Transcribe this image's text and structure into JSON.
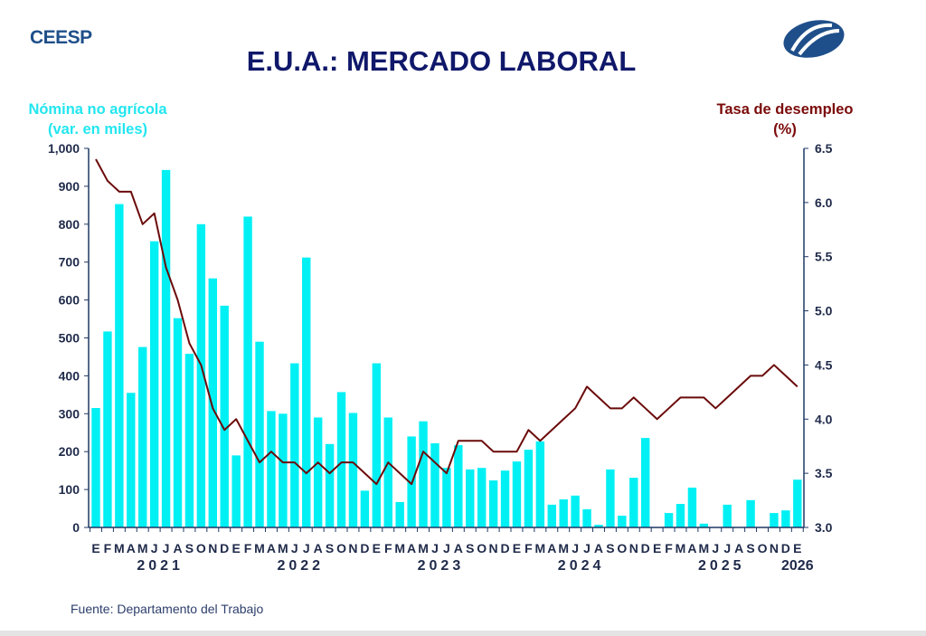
{
  "header": {
    "brand": "CEESP",
    "title": "E.U.A.: MERCADO LABORAL",
    "left_axis_title": [
      "Nómina no agrícola",
      "(var. en miles)"
    ],
    "right_axis_title": [
      "Tasa de desempleo",
      "(%)"
    ]
  },
  "footer": {
    "source": "Fuente: Departamento del Trabajo"
  },
  "colors": {
    "bars": "#00f0f4",
    "line": "#6b0a0a",
    "axis": "#1f3864",
    "title": "#10186a"
  },
  "chart_data": {
    "type": "bar+line",
    "title": "E.U.A.: MERCADO LABORAL",
    "month_labels": [
      "E",
      "F",
      "M",
      "A",
      "M",
      "J",
      "J",
      "A",
      "S",
      "O",
      "N",
      "D",
      "E",
      "F",
      "M",
      "A",
      "M",
      "J",
      "J",
      "A",
      "S",
      "O",
      "N",
      "D",
      "E",
      "F",
      "M",
      "A",
      "M",
      "J",
      "J",
      "A",
      "S",
      "O",
      "N",
      "D",
      "E",
      "F",
      "M",
      "A",
      "M",
      "J",
      "J",
      "A",
      "S",
      "O",
      "N",
      "D",
      "E",
      "F",
      "M",
      "A",
      "M",
      "J",
      "J",
      "A",
      "S",
      "O",
      "N",
      "D",
      "E"
    ],
    "year_labels": [
      {
        "label": "2021",
        "month_index": 5.5
      },
      {
        "label": "2022",
        "month_index": 17.5
      },
      {
        "label": "2023",
        "month_index": 29.5
      },
      {
        "label": "2024",
        "month_index": 41.5
      },
      {
        "label": "2025",
        "month_index": 53.5
      },
      {
        "label": "2026",
        "month_index": 60
      }
    ],
    "left_axis": {
      "label": "Nómina no agrícola (var. en miles)",
      "ylim": [
        0,
        1000
      ],
      "ticks": [
        "0",
        "100",
        "200",
        "300",
        "400",
        "500",
        "600",
        "700",
        "800",
        "900",
        "1,000"
      ]
    },
    "right_axis": {
      "label": "Tasa de desempleo (%)",
      "ylim": [
        3.0,
        6.5
      ],
      "ticks": [
        "3.0",
        "3.5",
        "4.0",
        "4.5",
        "5.0",
        "5.5",
        "6.0",
        "6.5"
      ]
    },
    "series": [
      {
        "name": "Nómina no agrícola",
        "type": "bar",
        "axis": "left",
        "values": [
          315,
          517,
          853,
          355,
          476,
          755,
          943,
          552,
          458,
          800,
          657,
          585,
          190,
          820,
          490,
          307,
          300,
          433,
          712,
          290,
          220,
          357,
          302,
          97,
          433,
          290,
          67,
          240,
          280,
          222,
          157,
          217,
          153,
          157,
          124,
          150,
          174,
          205,
          227,
          60,
          74,
          84,
          48,
          7,
          153,
          31,
          131,
          236,
          0,
          38,
          62,
          105,
          10,
          0,
          60,
          0,
          72,
          0,
          38,
          45,
          126
        ]
      },
      {
        "name": "Tasa de desempleo",
        "type": "line",
        "axis": "right",
        "values": [
          6.4,
          6.2,
          6.1,
          6.1,
          5.8,
          5.9,
          5.4,
          5.1,
          4.7,
          4.5,
          4.1,
          3.9,
          4.0,
          3.8,
          3.6,
          3.7,
          3.6,
          3.6,
          3.5,
          3.6,
          3.5,
          3.6,
          3.6,
          3.5,
          3.4,
          3.6,
          3.5,
          3.4,
          3.7,
          3.6,
          3.5,
          3.8,
          3.8,
          3.8,
          3.7,
          3.7,
          3.7,
          3.9,
          3.8,
          3.9,
          4.0,
          4.1,
          4.3,
          4.2,
          4.1,
          4.1,
          4.2,
          4.1,
          4.0,
          4.1,
          4.2,
          4.2,
          4.2,
          4.1,
          4.2,
          4.3,
          4.4,
          4.4,
          4.5,
          4.4,
          4.3
        ]
      }
    ]
  }
}
